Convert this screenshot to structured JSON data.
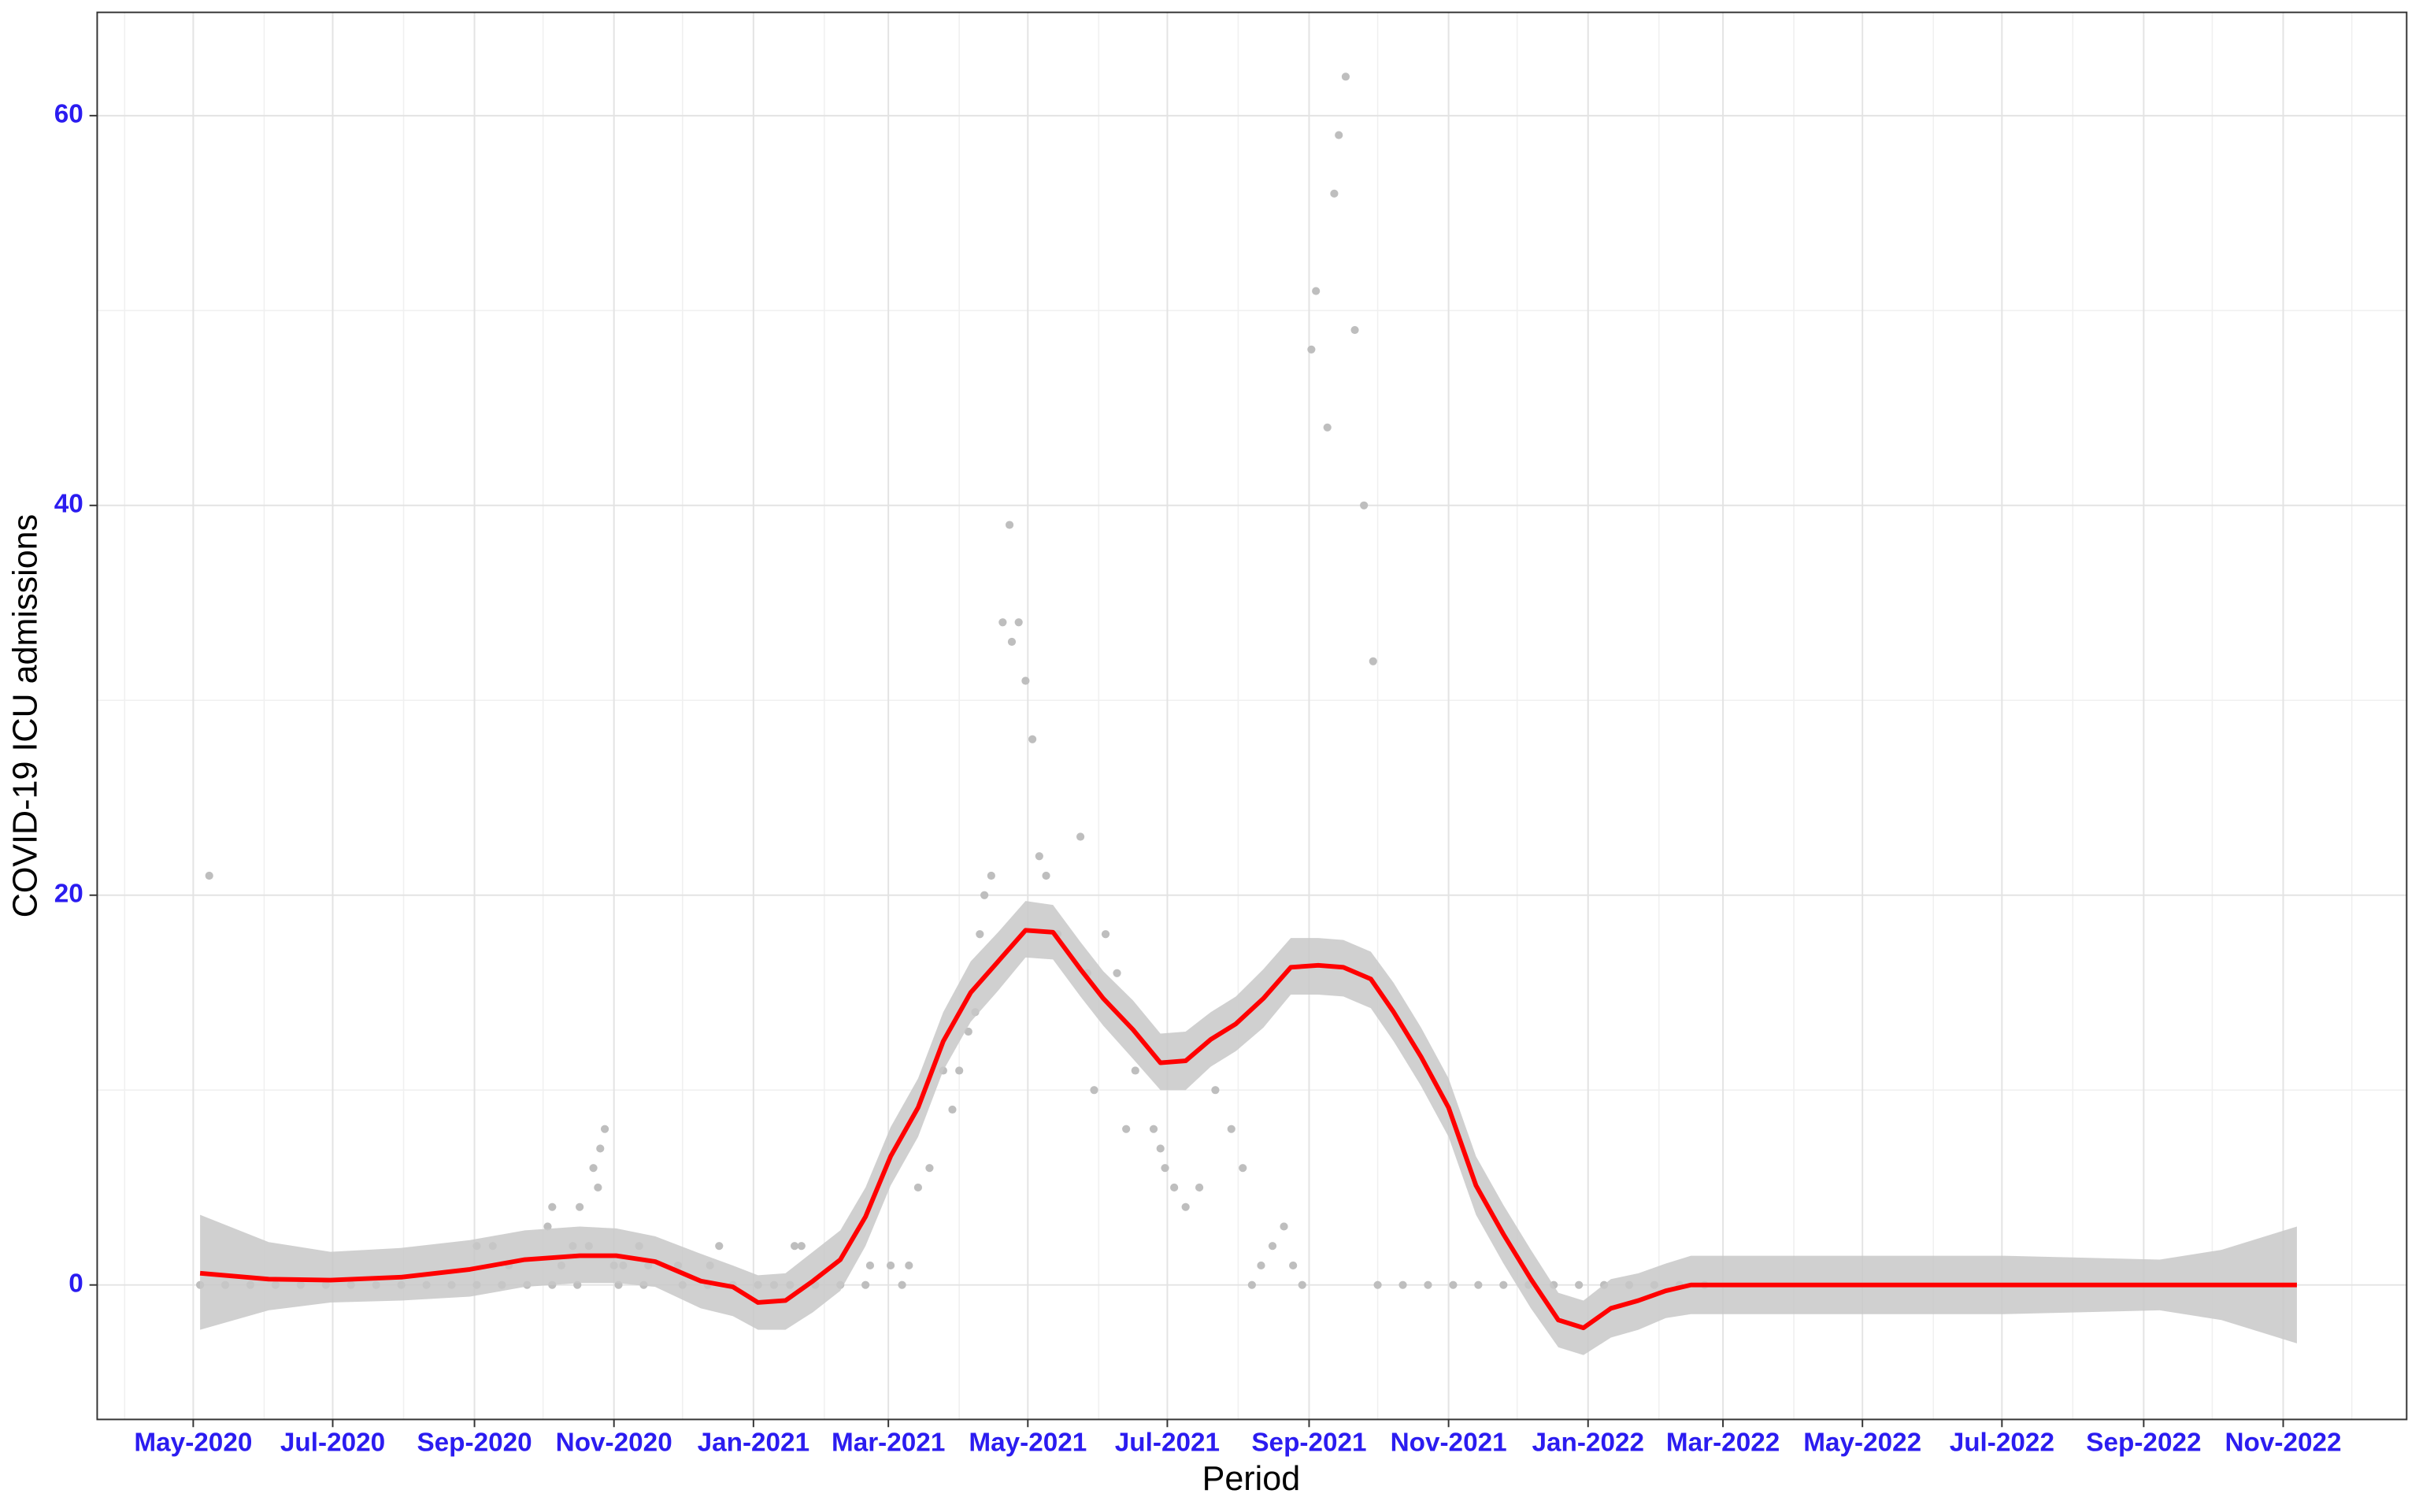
{
  "chart_data": {
    "type": "scatter",
    "x_label": "Period",
    "y_label": "COVID-19 ICU admissions",
    "xlim": [
      "2020-03-20",
      "2022-12-25"
    ],
    "xticks": [
      {
        "value": "2020-05-01",
        "label": "May-2020"
      },
      {
        "value": "2020-07-01",
        "label": "Jul-2020"
      },
      {
        "value": "2020-09-01",
        "label": "Sep-2020"
      },
      {
        "value": "2020-11-01",
        "label": "Nov-2020"
      },
      {
        "value": "2021-01-01",
        "label": "Jan-2021"
      },
      {
        "value": "2021-03-01",
        "label": "Mar-2021"
      },
      {
        "value": "2021-05-01",
        "label": "May-2021"
      },
      {
        "value": "2021-07-01",
        "label": "Jul-2021"
      },
      {
        "value": "2021-09-01",
        "label": "Sep-2021"
      },
      {
        "value": "2021-11-01",
        "label": "Nov-2021"
      },
      {
        "value": "2022-01-01",
        "label": "Jan-2022"
      },
      {
        "value": "2022-03-01",
        "label": "Mar-2022"
      },
      {
        "value": "2022-05-01",
        "label": "May-2022"
      },
      {
        "value": "2022-07-01",
        "label": "Jul-2022"
      },
      {
        "value": "2022-09-01",
        "label": "Sep-2022"
      },
      {
        "value": "2022-11-01",
        "label": "Nov-2022"
      }
    ],
    "xminorticks": [
      "2020-04-01",
      "2020-06-01",
      "2020-08-01",
      "2020-10-01",
      "2020-12-01",
      "2021-02-01",
      "2021-04-01",
      "2021-06-01",
      "2021-08-01",
      "2021-10-01",
      "2021-12-01",
      "2022-02-01",
      "2022-04-01",
      "2022-06-01",
      "2022-08-01",
      "2022-10-01",
      "2022-12-01"
    ],
    "ylim": [
      -6.9,
      65.3
    ],
    "yticks": [
      0,
      20,
      40,
      60
    ],
    "yminorticks": [
      10,
      30,
      50
    ],
    "grid": true,
    "series": [
      {
        "type": "scatter",
        "color": "#bebebe",
        "x": [
          "2020-05-08",
          "2020-09-02",
          "2020-09-09",
          "2020-09-16",
          "2020-10-03",
          "2020-10-05",
          "2020-10-09",
          "2020-10-14",
          "2020-10-17",
          "2020-10-21",
          "2020-10-23",
          "2020-10-25",
          "2020-10-26",
          "2020-10-28",
          "2020-11-01",
          "2020-11-05",
          "2020-11-12",
          "2020-11-16",
          "2020-11-29",
          "2020-12-13",
          "2020-12-17",
          "2021-01-19",
          "2021-01-22",
          "2021-02-21",
          "2021-03-02",
          "2021-03-07",
          "2021-03-10",
          "2021-03-14",
          "2021-03-19",
          "2021-03-25",
          "2021-03-29",
          "2021-04-01",
          "2021-04-05",
          "2021-04-08",
          "2021-04-10",
          "2021-04-12",
          "2021-04-15",
          "2021-04-20",
          "2021-04-23",
          "2021-04-24",
          "2021-04-27",
          "2021-04-30",
          "2021-05-03",
          "2021-05-06",
          "2021-05-09",
          "2021-05-14",
          "2021-05-24",
          "2021-05-27",
          "2021-05-30",
          "2021-06-04",
          "2021-06-09",
          "2021-06-13",
          "2021-06-17",
          "2021-06-25",
          "2021-06-28",
          "2021-06-30",
          "2021-07-04",
          "2021-07-09",
          "2021-07-15",
          "2021-07-22",
          "2021-07-29",
          "2021-08-03",
          "2021-08-07",
          "2021-08-11",
          "2021-08-16",
          "2021-08-21",
          "2021-08-25",
          "2021-08-29",
          "2021-09-02",
          "2021-09-04",
          "2021-09-09",
          "2021-09-12",
          "2021-09-14",
          "2021-09-17",
          "2021-09-21",
          "2021-09-25",
          "2021-09-29",
          "2020-05-04",
          "2020-05-15",
          "2020-05-26",
          "2020-06-06",
          "2020-06-17",
          "2020-06-28",
          "2020-07-09",
          "2020-07-20",
          "2020-07-31",
          "2020-08-11",
          "2020-08-22",
          "2020-09-02",
          "2020-09-13",
          "2020-09-24",
          "2020-10-05",
          "2020-10-16",
          "2020-11-03",
          "2020-11-14",
          "2020-12-01",
          "2020-12-12",
          "2020-12-23",
          "2021-01-03",
          "2021-01-10",
          "2021-01-17",
          "2021-01-28",
          "2021-02-08",
          "2021-02-19",
          "2021-10-01",
          "2021-10-12",
          "2021-10-23",
          "2021-11-03",
          "2021-11-14",
          "2021-11-25",
          "2021-12-06",
          "2021-12-17",
          "2021-12-28",
          "2022-01-08",
          "2022-01-19",
          "2022-01-30",
          "2022-02-10",
          "2022-02-21"
        ],
        "values": [
          21,
          2,
          2,
          1,
          3,
          4,
          1,
          2,
          4,
          2,
          6,
          5,
          7,
          8,
          1,
          1,
          2,
          1,
          1,
          1,
          2,
          2,
          2,
          1,
          1,
          0,
          1,
          5,
          6,
          11,
          9,
          11,
          13,
          14,
          18,
          20,
          21,
          34,
          39,
          33,
          34,
          31,
          28,
          22,
          21,
          18,
          23,
          16,
          10,
          18,
          16,
          8,
          11,
          8,
          7,
          6,
          5,
          4,
          5,
          10,
          8,
          6,
          0,
          1,
          2,
          3,
          1,
          0,
          48,
          51,
          44,
          56,
          59,
          62,
          49,
          40,
          32,
          0,
          0,
          0,
          0,
          0,
          0,
          0,
          0,
          0,
          0,
          0,
          0,
          0,
          0,
          0,
          0,
          0,
          0,
          0,
          0,
          0,
          0,
          0,
          0,
          0,
          0,
          0,
          0,
          0,
          0,
          0,
          0,
          0,
          0,
          0,
          0,
          0,
          0,
          0,
          0,
          0
        ]
      },
      {
        "type": "line",
        "color": "#ff0000",
        "band_color": "#c8c8c8",
        "x": [
          "2020-05-04",
          "2020-06-03",
          "2020-06-30",
          "2020-07-31",
          "2020-08-30",
          "2020-09-23",
          "2020-10-17",
          "2020-11-02",
          "2020-11-19",
          "2020-12-09",
          "2020-12-23",
          "2021-01-03",
          "2021-01-15",
          "2021-01-27",
          "2021-02-08",
          "2021-02-19",
          "2021-03-02",
          "2021-03-14",
          "2021-03-25",
          "2021-04-06",
          "2021-04-18",
          "2021-04-30",
          "2021-05-12",
          "2021-05-24",
          "2021-06-03",
          "2021-06-16",
          "2021-06-28",
          "2021-07-09",
          "2021-07-20",
          "2021-07-31",
          "2021-08-12",
          "2021-08-24",
          "2021-09-05",
          "2021-09-16",
          "2021-09-28",
          "2021-10-08",
          "2021-10-20",
          "2021-11-01",
          "2021-11-13",
          "2021-11-25",
          "2021-12-07",
          "2021-12-19",
          "2021-12-30",
          "2022-01-11",
          "2022-01-23",
          "2022-02-04",
          "2022-02-15",
          "2022-04-26",
          "2022-07-02",
          "2022-09-08",
          "2022-10-05",
          "2022-11-07"
        ],
        "values": [
          0.6,
          0.3,
          0.25,
          0.4,
          0.8,
          1.3,
          1.5,
          1.5,
          1.2,
          0.2,
          -0.1,
          -0.9,
          -0.8,
          0.2,
          1.3,
          3.5,
          6.6,
          9.1,
          12.5,
          15.0,
          16.6,
          18.2,
          18.1,
          16.2,
          14.7,
          13.1,
          11.4,
          11.5,
          12.6,
          13.4,
          14.7,
          16.3,
          16.4,
          16.3,
          15.7,
          14.0,
          11.7,
          9.1,
          5.1,
          2.6,
          0.3,
          -1.8,
          -2.2,
          -1.2,
          -0.8,
          -0.3,
          0,
          0,
          0,
          0,
          0,
          0
        ],
        "lower": [
          -2.3,
          -1.3,
          -0.9,
          -0.8,
          -0.6,
          -0.1,
          0.1,
          0.1,
          -0.1,
          -1.2,
          -1.6,
          -2.3,
          -2.3,
          -1.4,
          -0.3,
          2.0,
          5.1,
          7.6,
          11.0,
          13.5,
          15.1,
          16.8,
          16.7,
          14.8,
          13.3,
          11.6,
          10.0,
          10.0,
          11.2,
          12.0,
          13.2,
          14.9,
          14.9,
          14.8,
          14.2,
          12.5,
          10.2,
          7.6,
          3.6,
          1.1,
          -1.2,
          -3.2,
          -3.6,
          -2.7,
          -2.3,
          -1.7,
          -1.5,
          -1.5,
          -1.5,
          -1.3,
          -1.8,
          -3.0
        ],
        "upper": [
          3.6,
          2.2,
          1.7,
          1.9,
          2.3,
          2.8,
          3.0,
          2.9,
          2.5,
          1.6,
          1.0,
          0.5,
          0.6,
          1.7,
          2.8,
          5.0,
          8.1,
          10.6,
          14.0,
          16.6,
          18.1,
          19.7,
          19.5,
          17.6,
          16.1,
          14.6,
          12.9,
          13.0,
          14.0,
          14.8,
          16.2,
          17.8,
          17.8,
          17.7,
          17.1,
          15.5,
          13.2,
          10.6,
          6.6,
          4.1,
          1.8,
          -0.4,
          -0.8,
          0.3,
          0.6,
          1.1,
          1.5,
          1.5,
          1.5,
          1.3,
          1.8,
          3.0
        ]
      }
    ]
  }
}
